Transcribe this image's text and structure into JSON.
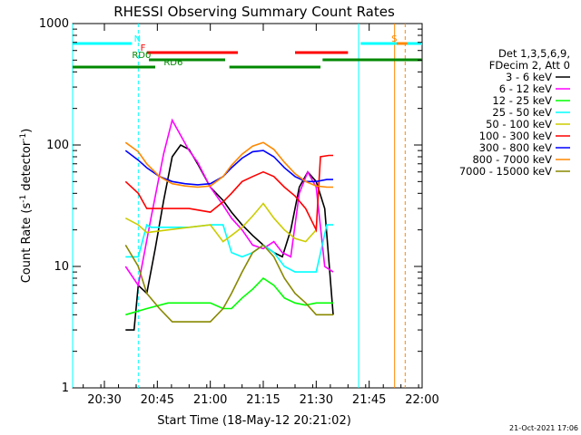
{
  "chart_data": {
    "type": "line",
    "title": "RHESSI Observing Summary Count Rates",
    "xlabel": "Start Time (18-May-12 20:21:02)",
    "ylabel": "Count Rate (s",
    "ylabel_sup1": "-1",
    "ylabel_mid": " detector",
    "ylabel_sup2": "-1",
    "ylabel_end": ")",
    "xlim": [
      20.35,
      22.0
    ],
    "ylim": [
      1,
      1000
    ],
    "yscale": "log",
    "x_ticks": [
      {
        "t": 20.5,
        "label": "20:30"
      },
      {
        "t": 20.75,
        "label": "20:45"
      },
      {
        "t": 21.0,
        "label": "21:00"
      },
      {
        "t": 21.25,
        "label": "21:15"
      },
      {
        "t": 21.5,
        "label": "21:30"
      },
      {
        "t": 21.75,
        "label": "21:45"
      },
      {
        "t": 22.0,
        "label": "22:00"
      }
    ],
    "y_ticks": [
      {
        "v": 1,
        "label": "1"
      },
      {
        "v": 10,
        "label": "10"
      },
      {
        "v": 100,
        "label": "100"
      },
      {
        "v": 1000,
        "label": "1000"
      }
    ],
    "legend_header": [
      "Det 1,3,5,6,9,",
      "FDecim 2, Att 0"
    ],
    "series": [
      {
        "name": "3 - 6 keV",
        "color": "#000000",
        "x": [
          20.6,
          20.64,
          20.66,
          20.7,
          20.74,
          20.78,
          20.82,
          20.86,
          20.9,
          20.94,
          21.0,
          21.06,
          21.1,
          21.15,
          21.2,
          21.25,
          21.3,
          21.34,
          21.38,
          21.42,
          21.46,
          21.5,
          21.54,
          21.58
        ],
        "y": [
          3,
          3,
          7,
          6,
          14,
          35,
          80,
          100,
          92,
          70,
          45,
          35,
          28,
          22,
          18,
          15,
          13,
          12,
          20,
          45,
          60,
          50,
          30,
          4
        ]
      },
      {
        "name": "6 - 12 keV",
        "color": "#ff00ff",
        "x": [
          20.6,
          20.66,
          20.72,
          20.78,
          20.82,
          20.86,
          20.9,
          20.94,
          21.0,
          21.06,
          21.1,
          21.15,
          21.2,
          21.25,
          21.3,
          21.34,
          21.38,
          21.42,
          21.46,
          21.5,
          21.54,
          21.58
        ],
        "y": [
          10,
          7,
          25,
          85,
          160,
          120,
          90,
          72,
          45,
          32,
          25,
          20,
          15,
          14,
          16,
          13,
          12,
          40,
          60,
          45,
          10,
          9
        ]
      },
      {
        "name": "12 - 25 keV",
        "color": "#00ff00",
        "x": [
          20.6,
          20.7,
          20.8,
          20.9,
          21.0,
          21.06,
          21.1,
          21.15,
          21.2,
          21.25,
          21.3,
          21.35,
          21.4,
          21.45,
          21.5,
          21.55,
          21.58
        ],
        "y": [
          4,
          4.5,
          5,
          5,
          5,
          4.5,
          4.5,
          5.5,
          6.5,
          8,
          7,
          5.5,
          5,
          4.8,
          5,
          5,
          5
        ]
      },
      {
        "name": "25 - 50 keV",
        "color": "#00ffff",
        "x": [
          20.6,
          20.66,
          20.7,
          20.72,
          20.8,
          20.9,
          21.0,
          21.06,
          21.1,
          21.15,
          21.2,
          21.25,
          21.3,
          21.35,
          21.4,
          21.45,
          21.5,
          21.55,
          21.58
        ],
        "y": [
          12,
          12,
          22,
          21,
          21,
          21,
          22,
          22,
          13,
          12,
          13,
          15,
          13,
          10,
          9,
          9,
          9,
          22,
          22
        ]
      },
      {
        "name": "50 - 100 keV",
        "color": "#cccc00",
        "x": [
          20.6,
          20.66,
          20.7,
          20.8,
          20.9,
          21.0,
          21.06,
          21.1,
          21.15,
          21.2,
          21.25,
          21.3,
          21.35,
          21.4,
          21.45,
          21.5
        ],
        "y": [
          25,
          22,
          19,
          20,
          21,
          22,
          16,
          18,
          21,
          26,
          33,
          25,
          20,
          17,
          16,
          20
        ]
      },
      {
        "name": "100 - 300 keV",
        "color": "#ff0000",
        "x": [
          20.6,
          20.66,
          20.7,
          20.8,
          20.9,
          21.0,
          21.06,
          21.1,
          21.15,
          21.2,
          21.25,
          21.3,
          21.35,
          21.4,
          21.45,
          21.5,
          21.52,
          21.56,
          21.58
        ],
        "y": [
          50,
          40,
          30,
          30,
          30,
          28,
          34,
          40,
          50,
          55,
          60,
          55,
          45,
          38,
          30,
          20,
          80,
          82,
          82
        ]
      },
      {
        "name": "300 - 800 keV",
        "color": "#0000ff",
        "x": [
          20.6,
          20.66,
          20.7,
          20.76,
          20.82,
          20.88,
          20.94,
          21.0,
          21.06,
          21.1,
          21.15,
          21.2,
          21.25,
          21.3,
          21.35,
          21.4,
          21.45,
          21.5,
          21.55,
          21.58
        ],
        "y": [
          90,
          75,
          65,
          55,
          50,
          48,
          47,
          48,
          55,
          65,
          78,
          88,
          90,
          80,
          65,
          55,
          50,
          50,
          52,
          52
        ]
      },
      {
        "name": "800 - 7000 keV",
        "color": "#ff8800",
        "x": [
          20.6,
          20.66,
          20.7,
          20.76,
          20.82,
          20.88,
          20.94,
          21.0,
          21.06,
          21.1,
          21.15,
          21.2,
          21.25,
          21.3,
          21.35,
          21.4,
          21.45,
          21.5,
          21.55,
          21.58
        ],
        "y": [
          105,
          88,
          70,
          55,
          48,
          46,
          45,
          46,
          55,
          68,
          84,
          98,
          105,
          92,
          72,
          58,
          50,
          46,
          45,
          45
        ]
      },
      {
        "name": "7000 - 15000 keV",
        "color": "#888800",
        "x": [
          20.6,
          20.66,
          20.7,
          20.76,
          20.82,
          20.88,
          20.94,
          21.0,
          21.06,
          21.1,
          21.15,
          21.2,
          21.25,
          21.3,
          21.35,
          21.4,
          21.45,
          21.5,
          21.55,
          21.58
        ],
        "y": [
          15,
          10,
          6,
          4.5,
          3.5,
          3.5,
          3.5,
          3.5,
          4.5,
          6,
          9,
          13,
          15,
          12,
          8,
          6,
          5,
          4,
          4,
          4
        ]
      }
    ],
    "vertical_lines": [
      {
        "t": 20.35,
        "color": "#00ffff",
        "dashed": false
      },
      {
        "t": 20.66,
        "color": "#00ffff",
        "dashed": true
      },
      {
        "t": 21.7,
        "color": "#00ffff",
        "dashed": false
      },
      {
        "t": 21.87,
        "color": "#ff8800",
        "dashed": false
      },
      {
        "t": 21.92,
        "color": "#ff8800",
        "dashed": true
      }
    ],
    "flag_bars": [
      {
        "row": 0,
        "color": "#00ffff",
        "segments": [
          [
            20.35,
            20.63
          ],
          [
            21.71,
            22.0
          ]
        ],
        "labels": [
          {
            "text": "N",
            "t": 20.64
          }
        ]
      },
      {
        "row": 0,
        "color": "#ff8800",
        "segments": [
          [
            21.88,
            21.93
          ]
        ],
        "labels": [
          {
            "text": "S",
            "t": 21.855
          }
        ]
      },
      {
        "row": 1,
        "color": "#ff0000",
        "segments": [
          [
            20.7,
            21.13
          ],
          [
            21.4,
            21.65
          ]
        ],
        "labels": [
          {
            "text": "F",
            "t": 20.67
          }
        ]
      },
      {
        "row": 2,
        "color": "#008800",
        "segments": [
          [
            20.71,
            21.07
          ]
        ],
        "labels": [
          {
            "text": "RD0",
            "t": 20.63
          }
        ]
      },
      {
        "row": 3,
        "color": "#008800",
        "segments": [
          [
            20.35,
            20.74
          ],
          [
            21.09,
            21.52
          ]
        ],
        "labels": [
          {
            "text": "RD6",
            "t": 20.78
          }
        ]
      },
      {
        "row": 2,
        "color": "#008800",
        "segments": [
          [
            21.53,
            22.0
          ]
        ],
        "labels": []
      }
    ],
    "stamp": "21-Oct-2021 17:06"
  }
}
